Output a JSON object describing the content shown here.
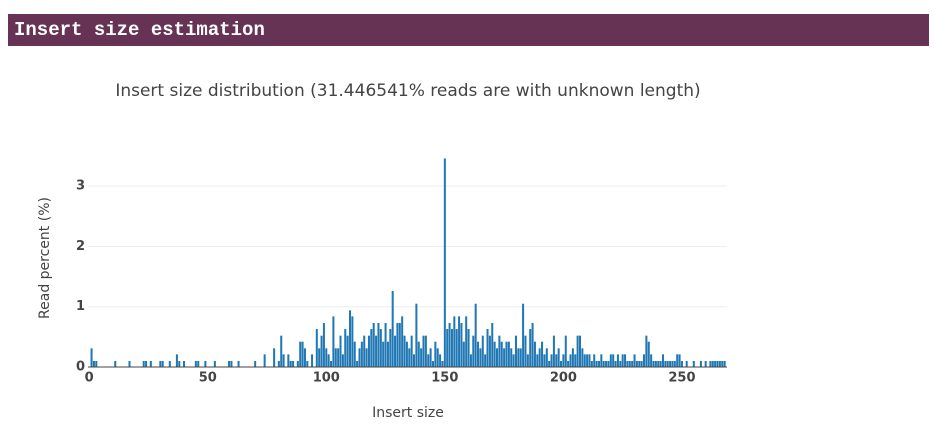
{
  "header": {
    "title": "Insert size estimation"
  },
  "chart_data": {
    "type": "bar",
    "title": "Insert size distribution (31.446541% reads are with unknown length)",
    "x_label": "Insert size",
    "y_label": "Read percent (%)",
    "color": "#1f77b4",
    "grid": true,
    "xlim": [
      -0.5,
      269
    ],
    "ylim": [
      0,
      3.6
    ],
    "xticks": [
      0,
      50,
      100,
      150,
      200,
      250
    ],
    "yticks": [
      0,
      1,
      2,
      3
    ],
    "x": [
      0,
      1,
      2,
      3,
      4,
      5,
      6,
      7,
      8,
      9,
      10,
      11,
      12,
      13,
      14,
      15,
      16,
      17,
      18,
      19,
      20,
      21,
      22,
      23,
      24,
      25,
      26,
      27,
      28,
      29,
      30,
      31,
      32,
      33,
      34,
      35,
      36,
      37,
      38,
      39,
      40,
      41,
      42,
      43,
      44,
      45,
      46,
      47,
      48,
      49,
      50,
      51,
      52,
      53,
      54,
      55,
      56,
      57,
      58,
      59,
      60,
      61,
      62,
      63,
      64,
      65,
      66,
      67,
      68,
      69,
      70,
      71,
      72,
      73,
      74,
      75,
      76,
      77,
      78,
      79,
      80,
      81,
      82,
      83,
      84,
      85,
      86,
      87,
      88,
      89,
      90,
      91,
      92,
      93,
      94,
      95,
      96,
      97,
      98,
      99,
      100,
      101,
      102,
      103,
      104,
      105,
      106,
      107,
      108,
      109,
      110,
      111,
      112,
      113,
      114,
      115,
      116,
      117,
      118,
      119,
      120,
      121,
      122,
      123,
      124,
      125,
      126,
      127,
      128,
      129,
      130,
      131,
      132,
      133,
      134,
      135,
      136,
      137,
      138,
      139,
      140,
      141,
      142,
      143,
      144,
      145,
      146,
      147,
      148,
      149,
      150,
      151,
      152,
      153,
      154,
      155,
      156,
      157,
      158,
      159,
      160,
      161,
      162,
      163,
      164,
      165,
      166,
      167,
      168,
      169,
      170,
      171,
      172,
      173,
      174,
      175,
      176,
      177,
      178,
      179,
      180,
      181,
      182,
      183,
      184,
      185,
      186,
      187,
      188,
      189,
      190,
      191,
      192,
      193,
      194,
      195,
      196,
      197,
      198,
      199,
      200,
      201,
      202,
      203,
      204,
      205,
      206,
      207,
      208,
      209,
      210,
      211,
      212,
      213,
      214,
      215,
      216,
      217,
      218,
      219,
      220,
      221,
      222,
      223,
      224,
      225,
      226,
      227,
      228,
      229,
      230,
      231,
      232,
      233,
      234,
      235,
      236,
      237,
      238,
      239,
      240,
      241,
      242,
      243,
      244,
      245,
      246,
      247,
      248,
      249,
      250,
      251,
      252,
      253,
      254,
      255,
      256,
      257,
      258,
      259,
      260,
      261,
      262,
      263,
      264,
      265,
      266,
      267,
      268
    ],
    "values": [
      0,
      0.31,
      0.1,
      0.1,
      0,
      0,
      0,
      0,
      0,
      0,
      0,
      0.1,
      0,
      0,
      0,
      0,
      0,
      0.1,
      0,
      0,
      0,
      0,
      0,
      0.1,
      0.1,
      0,
      0.1,
      0,
      0,
      0,
      0.1,
      0.1,
      0,
      0,
      0.1,
      0,
      0,
      0.21,
      0.1,
      0,
      0.1,
      0,
      0,
      0,
      0,
      0.1,
      0.1,
      0,
      0,
      0.1,
      0,
      0,
      0,
      0.1,
      0,
      0,
      0,
      0,
      0,
      0.1,
      0.1,
      0,
      0,
      0.1,
      0,
      0,
      0,
      0,
      0,
      0,
      0.1,
      0,
      0,
      0,
      0.21,
      0,
      0,
      0,
      0.31,
      0,
      0.1,
      0.52,
      0.21,
      0,
      0.21,
      0.1,
      0.1,
      0,
      0.1,
      0.42,
      0.42,
      0.31,
      0.1,
      0,
      0.21,
      0,
      0.63,
      0.31,
      0.52,
      0.73,
      0.31,
      0.21,
      0.1,
      0.84,
      0.31,
      0.31,
      0.52,
      0.21,
      0.63,
      0.52,
      0.94,
      0.84,
      0.42,
      0.1,
      0.31,
      0.42,
      0.52,
      0.31,
      0.52,
      0.63,
      0.73,
      0.52,
      0.73,
      0.63,
      0.42,
      0.73,
      0.42,
      0.63,
      1.26,
      0.52,
      0.73,
      0.73,
      0.84,
      0.52,
      0.42,
      0.31,
      0.52,
      0.21,
      1.05,
      0.42,
      0.31,
      0.52,
      0.52,
      0.21,
      0.31,
      0.1,
      0.42,
      0.31,
      0.21,
      0.1,
      3.46,
      0.63,
      0.73,
      0.63,
      0.84,
      0.63,
      0.84,
      0.73,
      0.42,
      0.84,
      0.63,
      0.21,
      0.52,
      1.05,
      0.42,
      0.31,
      0.52,
      0.21,
      0.63,
      0.52,
      0.73,
      0.42,
      0.31,
      0.52,
      0.42,
      0.31,
      0.42,
      0.42,
      0.31,
      0.21,
      0.52,
      0.31,
      0.31,
      1.05,
      0.52,
      0.21,
      0.63,
      0.73,
      0.42,
      0.21,
      0.31,
      0.42,
      0.21,
      0.31,
      0.1,
      0.21,
      0.52,
      0.21,
      0.31,
      0.1,
      0.21,
      0.52,
      0.1,
      0.21,
      0.31,
      0.21,
      0.52,
      0.52,
      0.31,
      0.21,
      0.21,
      0.21,
      0.1,
      0.21,
      0.1,
      0.1,
      0.21,
      0.1,
      0.1,
      0.1,
      0.21,
      0.21,
      0.1,
      0.21,
      0.1,
      0.21,
      0.21,
      0.1,
      0.1,
      0.1,
      0.21,
      0.1,
      0.1,
      0.1,
      0.21,
      0.52,
      0.42,
      0.21,
      0.1,
      0.1,
      0.1,
      0.1,
      0.21,
      0.1,
      0.1,
      0.1,
      0.1,
      0.1,
      0.21,
      0.21,
      0.1,
      0,
      0.1,
      0,
      0,
      0.1,
      0,
      0,
      0.1,
      0,
      0.1,
      0,
      0.1,
      0.1,
      0.1,
      0.1,
      0.1,
      0.1,
      0.1
    ]
  }
}
